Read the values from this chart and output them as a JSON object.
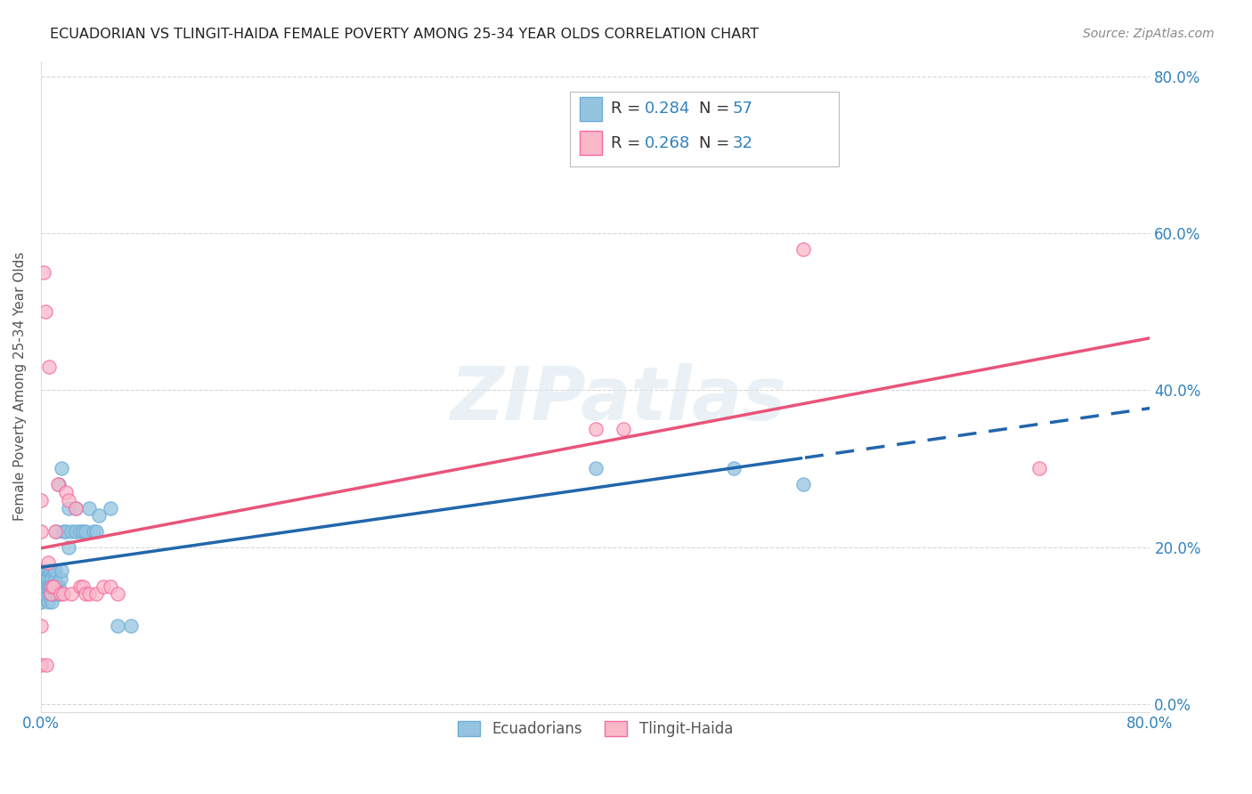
{
  "title": "ECUADORIAN VS TLINGIT-HAIDA FEMALE POVERTY AMONG 25-34 YEAR OLDS CORRELATION CHART",
  "source": "Source: ZipAtlas.com",
  "ylabel": "Female Poverty Among 25-34 Year Olds",
  "legend1_r": "0.284",
  "legend1_n": "57",
  "legend2_r": "0.268",
  "legend2_n": "32",
  "color_blue": "#94c4e0",
  "color_blue_edge": "#6baed6",
  "color_pink": "#f9b8c8",
  "color_pink_edge": "#f768a1",
  "color_blue_text": "#3182bd",
  "color_trendline_blue": "#2166ac",
  "color_trendline_pink": "#e8547a",
  "background_color": "#ffffff",
  "grid_color": "#cccccc",
  "ec_x": [
    0.0,
    0.0,
    0.0,
    0.0,
    0.0,
    0.0,
    0.0,
    0.0,
    0.002,
    0.002,
    0.003,
    0.003,
    0.004,
    0.005,
    0.005,
    0.005,
    0.006,
    0.006,
    0.006,
    0.007,
    0.007,
    0.008,
    0.008,
    0.008,
    0.009,
    0.009,
    0.01,
    0.01,
    0.01,
    0.011,
    0.011,
    0.012,
    0.013,
    0.013,
    0.014,
    0.015,
    0.015,
    0.016,
    0.018,
    0.02,
    0.02,
    0.022,
    0.025,
    0.025,
    0.028,
    0.03,
    0.032,
    0.035,
    0.038,
    0.04,
    0.042,
    0.05,
    0.055,
    0.065,
    0.4,
    0.5,
    0.55
  ],
  "ec_y": [
    0.13,
    0.13,
    0.14,
    0.15,
    0.16,
    0.16,
    0.17,
    0.17,
    0.14,
    0.16,
    0.15,
    0.17,
    0.16,
    0.13,
    0.15,
    0.16,
    0.14,
    0.15,
    0.17,
    0.15,
    0.17,
    0.13,
    0.14,
    0.16,
    0.15,
    0.17,
    0.14,
    0.16,
    0.17,
    0.15,
    0.22,
    0.14,
    0.15,
    0.28,
    0.16,
    0.17,
    0.3,
    0.22,
    0.22,
    0.2,
    0.25,
    0.22,
    0.22,
    0.25,
    0.22,
    0.22,
    0.22,
    0.25,
    0.22,
    0.22,
    0.24,
    0.25,
    0.1,
    0.1,
    0.3,
    0.3,
    0.28
  ],
  "tl_x": [
    0.0,
    0.0,
    0.0,
    0.0,
    0.002,
    0.003,
    0.004,
    0.005,
    0.006,
    0.007,
    0.008,
    0.009,
    0.01,
    0.012,
    0.014,
    0.016,
    0.018,
    0.02,
    0.022,
    0.025,
    0.028,
    0.03,
    0.032,
    0.035,
    0.04,
    0.045,
    0.05,
    0.055,
    0.4,
    0.42,
    0.55,
    0.72
  ],
  "tl_y": [
    0.26,
    0.22,
    0.1,
    0.05,
    0.55,
    0.5,
    0.05,
    0.18,
    0.43,
    0.14,
    0.15,
    0.15,
    0.22,
    0.28,
    0.14,
    0.14,
    0.27,
    0.26,
    0.14,
    0.25,
    0.15,
    0.15,
    0.14,
    0.14,
    0.14,
    0.15,
    0.15,
    0.14,
    0.35,
    0.35,
    0.58,
    0.3
  ],
  "xlim": [
    0.0,
    0.8
  ],
  "ylim": [
    -0.01,
    0.82
  ],
  "xticks": [
    0.0,
    0.1,
    0.2,
    0.3,
    0.4,
    0.5,
    0.6,
    0.7,
    0.8
  ],
  "yticks": [
    0.0,
    0.2,
    0.4,
    0.6,
    0.8
  ],
  "ytick_labels": [
    "0.0%",
    "20.0%",
    "40.0%",
    "60.0%",
    "80.0%"
  ],
  "xtick_labels": [
    "0.0%",
    "",
    "",
    "",
    "",
    "",
    "",
    "",
    "80.0%"
  ],
  "watermark_text": "ZIPatlas",
  "label_ecuadorians": "Ecuadorians",
  "label_tlingit": "Tlingit-Haida"
}
